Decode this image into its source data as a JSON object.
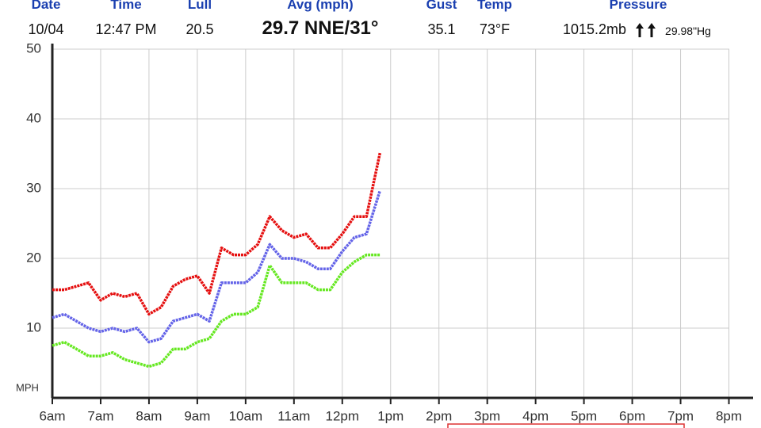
{
  "header": {
    "columns": [
      {
        "label": "Date",
        "value": "10/04"
      },
      {
        "label": "Time",
        "value": "12:47 PM"
      },
      {
        "label": "Lull",
        "value": "20.5"
      },
      {
        "label": "Avg (mph)",
        "value": "29.7 NNE/31°"
      },
      {
        "label": "Gust",
        "value": "35.1"
      },
      {
        "label": "Temp",
        "value": "73°F"
      },
      {
        "label": "Pressure",
        "value": "1015.2mb",
        "secondary": "29.98\"Hg"
      }
    ]
  },
  "chart_data": {
    "type": "line",
    "y_label": "MPH",
    "x": [
      6,
      6.25,
      6.5,
      6.75,
      7,
      7.25,
      7.5,
      7.75,
      8,
      8.25,
      8.5,
      8.75,
      9,
      9.25,
      9.5,
      9.75,
      10,
      10.25,
      10.5,
      10.75,
      11,
      11.25,
      11.5,
      11.75,
      12,
      12.25,
      12.5,
      12.78
    ],
    "series": [
      {
        "name": "Gust",
        "color": "#e51010",
        "values": [
          15.5,
          15.5,
          16,
          16.5,
          14,
          15,
          14.5,
          15,
          12,
          13,
          16,
          17,
          17.5,
          15,
          21.5,
          20.5,
          20.5,
          22,
          26,
          24,
          23,
          23.5,
          21.5,
          21.5,
          23.5,
          26,
          26,
          35.1
        ]
      },
      {
        "name": "Avg",
        "color": "#6464e8",
        "values": [
          11.5,
          12,
          11,
          10,
          9.5,
          10,
          9.5,
          10,
          8,
          8.5,
          11,
          11.5,
          12,
          11,
          16.5,
          16.5,
          16.5,
          18,
          22,
          20,
          20,
          19.5,
          18.5,
          18.5,
          21,
          23,
          23.5,
          29.7
        ]
      },
      {
        "name": "Lull",
        "color": "#66e822",
        "values": [
          7.5,
          8,
          7,
          6,
          6,
          6.5,
          5.5,
          5,
          4.5,
          5,
          7,
          7,
          8,
          8.5,
          11,
          12,
          12,
          13,
          19,
          16.5,
          16.5,
          16.5,
          15.5,
          15.5,
          18,
          19.5,
          20.5,
          20.5
        ]
      }
    ],
    "xlim": [
      6,
      20.5
    ],
    "ylim": [
      0,
      50
    ],
    "yticks": [
      10,
      20,
      30,
      40,
      50
    ],
    "xticks": [
      {
        "value": 6,
        "label": "6am"
      },
      {
        "value": 7,
        "label": "7am"
      },
      {
        "value": 8,
        "label": "8am"
      },
      {
        "value": 9,
        "label": "9am"
      },
      {
        "value": 10,
        "label": "10am"
      },
      {
        "value": 11,
        "label": "11am"
      },
      {
        "value": 12,
        "label": "12pm"
      },
      {
        "value": 13,
        "label": "1pm"
      },
      {
        "value": 14,
        "label": "2pm"
      },
      {
        "value": 15,
        "label": "3pm"
      },
      {
        "value": 16,
        "label": "4pm"
      },
      {
        "value": 17,
        "label": "5pm"
      },
      {
        "value": 18,
        "label": "6pm"
      },
      {
        "value": 19,
        "label": "7pm"
      },
      {
        "value": 20,
        "label": "8pm"
      }
    ],
    "grid": true
  }
}
